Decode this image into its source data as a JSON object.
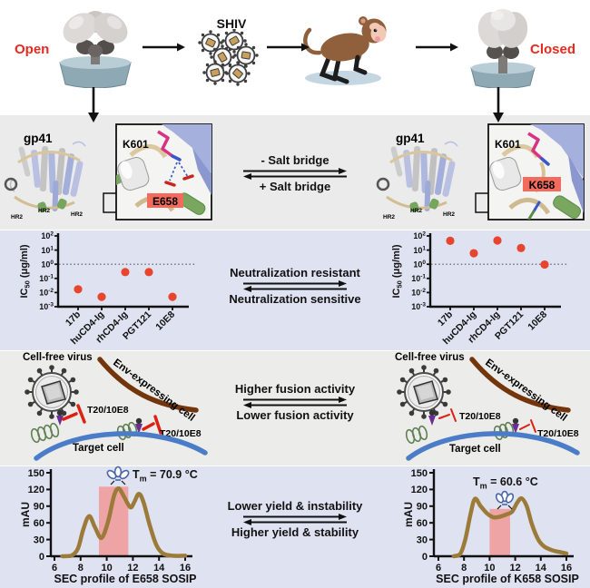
{
  "top_row": {
    "open_label": "Open",
    "shiv_label": "SHIV",
    "closed_label": "Closed"
  },
  "structure_row": {
    "gp41_label": "gp41",
    "hr2_label": "HR2",
    "k601_label": "K601",
    "e658_label": "E658",
    "k658_label": "K658",
    "arrow_top": "- Salt bridge",
    "arrow_bottom": "+ Salt bridge"
  },
  "neutralization_row": {
    "arrow_top": "Neutralization resistant",
    "arrow_bottom": "Neutralization sensitive"
  },
  "fusion_row": {
    "cell_free_virus": "Cell-free virus",
    "env_cell": "Env-expressing cell",
    "inhibitor": "T20/10E8",
    "target_cell": "Target cell",
    "arrow_top": "Higher fusion activity",
    "arrow_bottom": "Lower fusion activity"
  },
  "sec_row": {
    "arrow_top": "Lower yield & instability",
    "arrow_bottom": "Higher yield & stability"
  },
  "colors": {
    "accent_red": "#e8291f",
    "band_gray": "#ebebeb",
    "band_lavender": "#dfe3f1",
    "sec_curve": "#9c7a3a",
    "sec_highlight": "#f09b9b",
    "ic50_dot": "#e8452e",
    "residue_box": "#f26b5c",
    "target_cell_blue": "#4a7cc7",
    "env_cell_brown": "#73350b",
    "inhibitor_red": "#dd2015",
    "coil_green": "#5f7f50",
    "env_spike_purple": "#6a2d91"
  },
  "chart_data": [
    {
      "type": "scatter",
      "panel": "left-open-trimer",
      "ylabel": {
        "base": "IC",
        "sub": "50",
        "units": " (μg/ml)"
      },
      "categories": [
        "17b",
        "huCD4-Ig",
        "rhCD4-Ig",
        "PGT121",
        "10E8"
      ],
      "values": [
        0.017,
        0.005,
        0.28,
        0.28,
        0.005
      ],
      "yscale": "log",
      "y_exponents": [
        "2",
        "1",
        "0",
        "-1",
        "-2",
        "-3"
      ],
      "ylim": [
        0.001,
        100
      ],
      "reference_line": 1.0,
      "point_color": "#e8452e"
    },
    {
      "type": "scatter",
      "panel": "right-closed-trimer",
      "ylabel": {
        "base": "IC",
        "sub": "50",
        "units": " (μg/ml)"
      },
      "categories": [
        "17b",
        "huCD4-Ig",
        "rhCD4-Ig",
        "PGT121",
        "10E8"
      ],
      "values": [
        45,
        6,
        48,
        14,
        0.95
      ],
      "yscale": "log",
      "y_exponents": [
        "2",
        "1",
        "0",
        "-1",
        "-2",
        "-3"
      ],
      "ylim": [
        0.001,
        100
      ],
      "reference_line": 1.0,
      "point_color": "#e8452e"
    },
    {
      "type": "line",
      "panel": "left-SEC",
      "xlabel": "SEC profile of E658 SOSIP",
      "ylabel": "mAU",
      "tm": {
        "prefix": "T",
        "sub": "m",
        "rest": " = 70.9 °C"
      },
      "x": [
        6.6,
        7.3,
        7.8,
        8.2,
        8.65,
        9.1,
        9.6,
        10.1,
        10.55,
        10.9,
        11.3,
        11.8,
        12.1,
        12.45,
        12.8,
        13.3,
        13.8,
        14.3,
        15.0,
        16.0
      ],
      "y": [
        0,
        1,
        14,
        48,
        72,
        52,
        33,
        62,
        108,
        122,
        108,
        88,
        97,
        112,
        98,
        55,
        20,
        5,
        1,
        1
      ],
      "xticks": [
        6,
        8,
        10,
        12,
        14,
        16
      ],
      "yticks": [
        0,
        30,
        60,
        90,
        120,
        150
      ],
      "xlim": [
        6,
        16
      ],
      "ylim": [
        0,
        150
      ],
      "highlight": {
        "x0": 9.4,
        "x1": 11.65,
        "top": 125
      },
      "line_color": "#9c7a3a",
      "highlight_color": "#f09b9b"
    },
    {
      "type": "line",
      "panel": "right-SEC",
      "xlabel": "SEC profile of K658 SOSIP",
      "ylabel": "mAU",
      "tm": {
        "prefix": "T",
        "sub": "m",
        "rest": " = 60.6 °C"
      },
      "x": [
        7.2,
        7.7,
        8.1,
        8.5,
        8.85,
        9.3,
        9.8,
        10.3,
        10.8,
        11.3,
        11.75,
        12.15,
        12.5,
        12.9,
        13.3,
        13.8,
        14.3,
        15.0,
        15.6,
        16.0
      ],
      "y": [
        0,
        4,
        30,
        75,
        103,
        90,
        77,
        70,
        71,
        75,
        80,
        96,
        104,
        90,
        58,
        30,
        17,
        10,
        7,
        5
      ],
      "xticks": [
        6,
        8,
        10,
        12,
        14,
        16
      ],
      "yticks": [
        0,
        30,
        60,
        90,
        120,
        150
      ],
      "xlim": [
        6,
        16
      ],
      "ylim": [
        0,
        150
      ],
      "highlight": {
        "x0": 10.0,
        "x1": 11.6,
        "top": 85
      },
      "line_color": "#9c7a3a",
      "highlight_color": "#f09b9b"
    }
  ]
}
